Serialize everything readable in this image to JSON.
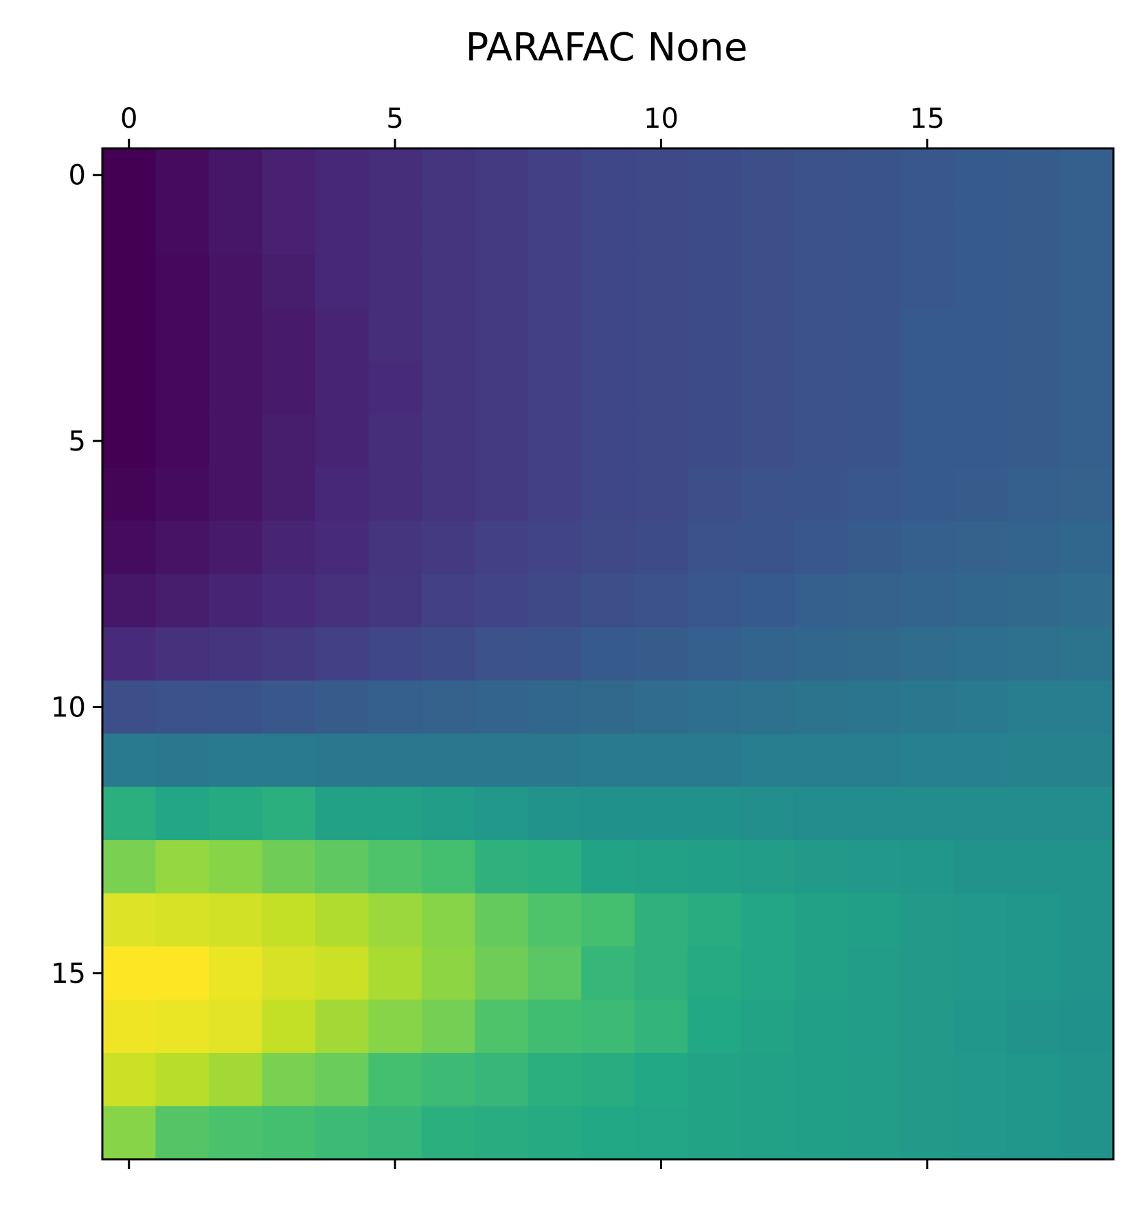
{
  "chart_data": {
    "type": "heatmap",
    "title": "PARAFAC None",
    "xlabel": "",
    "ylabel": "",
    "colormap": "viridis",
    "x_axis_position": "top",
    "xlim": [
      -0.5,
      18.5
    ],
    "ylim": [
      -0.5,
      18.5
    ],
    "x_ticks": [
      0,
      5,
      10,
      15
    ],
    "y_ticks": [
      0,
      5,
      10,
      15
    ],
    "x_tick_labels": [
      "0",
      "5",
      "10",
      "15"
    ],
    "y_tick_labels": [
      "0",
      "5",
      "10",
      "15"
    ],
    "grid": false,
    "legend": "none",
    "value_range": [
      0,
      1
    ],
    "values": [
      [
        0.0,
        0.03,
        0.06,
        0.09,
        0.11,
        0.13,
        0.15,
        0.17,
        0.19,
        0.21,
        0.22,
        0.23,
        0.24,
        0.25,
        0.26,
        0.27,
        0.28,
        0.29,
        0.3
      ],
      [
        0.0,
        0.03,
        0.06,
        0.09,
        0.11,
        0.13,
        0.15,
        0.17,
        0.19,
        0.21,
        0.22,
        0.23,
        0.24,
        0.25,
        0.26,
        0.27,
        0.28,
        0.29,
        0.3
      ],
      [
        0.0,
        0.02,
        0.05,
        0.08,
        0.11,
        0.13,
        0.15,
        0.17,
        0.19,
        0.21,
        0.22,
        0.23,
        0.24,
        0.25,
        0.26,
        0.27,
        0.28,
        0.29,
        0.3
      ],
      [
        0.0,
        0.02,
        0.05,
        0.07,
        0.1,
        0.13,
        0.15,
        0.17,
        0.19,
        0.21,
        0.22,
        0.23,
        0.24,
        0.25,
        0.26,
        0.28,
        0.28,
        0.29,
        0.3
      ],
      [
        0.0,
        0.02,
        0.05,
        0.07,
        0.1,
        0.12,
        0.15,
        0.17,
        0.19,
        0.21,
        0.22,
        0.23,
        0.24,
        0.25,
        0.26,
        0.28,
        0.28,
        0.29,
        0.3
      ],
      [
        0.0,
        0.02,
        0.05,
        0.08,
        0.1,
        0.13,
        0.15,
        0.17,
        0.19,
        0.21,
        0.22,
        0.23,
        0.24,
        0.25,
        0.26,
        0.28,
        0.28,
        0.29,
        0.3
      ],
      [
        0.01,
        0.03,
        0.05,
        0.08,
        0.11,
        0.13,
        0.15,
        0.17,
        0.19,
        0.21,
        0.22,
        0.24,
        0.25,
        0.26,
        0.27,
        0.28,
        0.29,
        0.3,
        0.31
      ],
      [
        0.03,
        0.05,
        0.07,
        0.1,
        0.12,
        0.15,
        0.17,
        0.19,
        0.2,
        0.22,
        0.23,
        0.25,
        0.26,
        0.27,
        0.29,
        0.3,
        0.31,
        0.32,
        0.33
      ],
      [
        0.06,
        0.08,
        0.1,
        0.12,
        0.14,
        0.16,
        0.19,
        0.2,
        0.22,
        0.24,
        0.25,
        0.27,
        0.28,
        0.3,
        0.31,
        0.32,
        0.33,
        0.34,
        0.35
      ],
      [
        0.12,
        0.14,
        0.15,
        0.17,
        0.19,
        0.21,
        0.23,
        0.25,
        0.26,
        0.28,
        0.29,
        0.3,
        0.32,
        0.33,
        0.34,
        0.35,
        0.36,
        0.37,
        0.38
      ],
      [
        0.24,
        0.25,
        0.26,
        0.27,
        0.29,
        0.3,
        0.31,
        0.32,
        0.33,
        0.34,
        0.35,
        0.36,
        0.37,
        0.38,
        0.39,
        0.4,
        0.41,
        0.42,
        0.42
      ],
      [
        0.41,
        0.4,
        0.41,
        0.41,
        0.4,
        0.4,
        0.4,
        0.4,
        0.4,
        0.41,
        0.41,
        0.41,
        0.42,
        0.42,
        0.42,
        0.43,
        0.43,
        0.44,
        0.44
      ],
      [
        0.63,
        0.59,
        0.61,
        0.63,
        0.57,
        0.57,
        0.55,
        0.53,
        0.51,
        0.5,
        0.5,
        0.5,
        0.49,
        0.48,
        0.48,
        0.48,
        0.48,
        0.48,
        0.48
      ],
      [
        0.8,
        0.84,
        0.82,
        0.78,
        0.75,
        0.72,
        0.7,
        0.64,
        0.63,
        0.58,
        0.57,
        0.56,
        0.55,
        0.54,
        0.53,
        0.52,
        0.51,
        0.51,
        0.51
      ],
      [
        0.95,
        0.94,
        0.93,
        0.91,
        0.88,
        0.85,
        0.82,
        0.76,
        0.72,
        0.7,
        0.64,
        0.62,
        0.59,
        0.57,
        0.56,
        0.54,
        0.53,
        0.52,
        0.51
      ],
      [
        1.0,
        1.0,
        0.97,
        0.94,
        0.92,
        0.87,
        0.83,
        0.78,
        0.74,
        0.66,
        0.64,
        0.61,
        0.59,
        0.57,
        0.55,
        0.54,
        0.53,
        0.52,
        0.51
      ],
      [
        0.98,
        0.97,
        0.96,
        0.91,
        0.86,
        0.82,
        0.79,
        0.72,
        0.69,
        0.68,
        0.65,
        0.6,
        0.58,
        0.56,
        0.55,
        0.54,
        0.52,
        0.51,
        0.5
      ],
      [
        0.92,
        0.89,
        0.86,
        0.8,
        0.77,
        0.7,
        0.68,
        0.66,
        0.63,
        0.62,
        0.6,
        0.58,
        0.57,
        0.56,
        0.55,
        0.54,
        0.53,
        0.52,
        0.51
      ],
      [
        0.82,
        0.73,
        0.71,
        0.7,
        0.68,
        0.66,
        0.63,
        0.62,
        0.61,
        0.6,
        0.59,
        0.58,
        0.57,
        0.56,
        0.55,
        0.54,
        0.53,
        0.52,
        0.51
      ]
    ]
  }
}
